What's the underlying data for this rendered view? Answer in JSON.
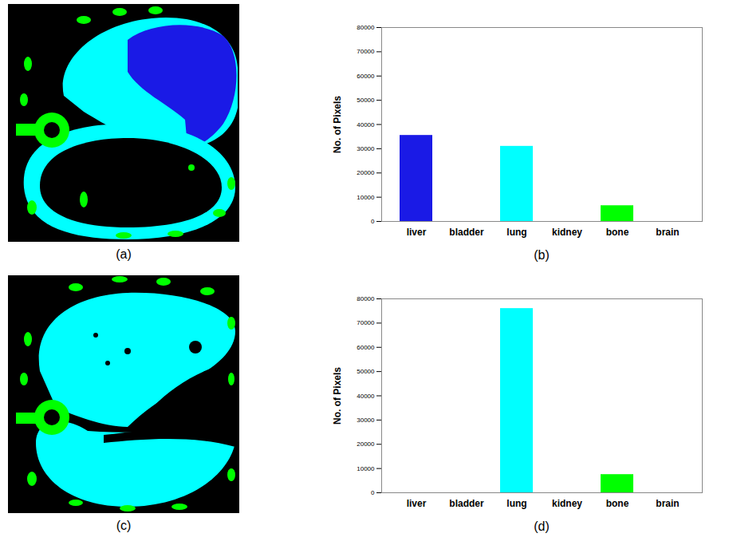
{
  "images": [
    {
      "panel": "(a)"
    },
    {
      "panel": "(c)"
    }
  ],
  "chart_data": [
    {
      "type": "bar",
      "panel": "(b)",
      "y_label": "No. of Pixels",
      "categories": [
        "liver",
        "bladder",
        "lung",
        "kidney",
        "bone",
        "brain"
      ],
      "values": [
        35500,
        0,
        31000,
        0,
        6500,
        0
      ],
      "colors": [
        "#1a1ae6",
        "#1a1ae6",
        "#00ffff",
        "#00ffff",
        "#00ff00",
        "#00ff00"
      ],
      "ylim": [
        0,
        80000
      ],
      "yticks": [
        0,
        10000,
        20000,
        30000,
        40000,
        50000,
        60000,
        70000,
        80000
      ],
      "grid": false
    },
    {
      "type": "bar",
      "panel": "(d)",
      "y_label": "No. of Pixels",
      "categories": [
        "liver",
        "bladder",
        "lung",
        "kidney",
        "bone",
        "brain"
      ],
      "values": [
        0,
        0,
        76000,
        0,
        7500,
        0
      ],
      "colors": [
        "#1a1ae6",
        "#1a1ae6",
        "#00ffff",
        "#00ffff",
        "#00ff00",
        "#00ff00"
      ],
      "ylim": [
        0,
        80000
      ],
      "yticks": [
        0,
        10000,
        20000,
        30000,
        40000,
        50000,
        60000,
        70000,
        80000
      ],
      "grid": false
    }
  ]
}
